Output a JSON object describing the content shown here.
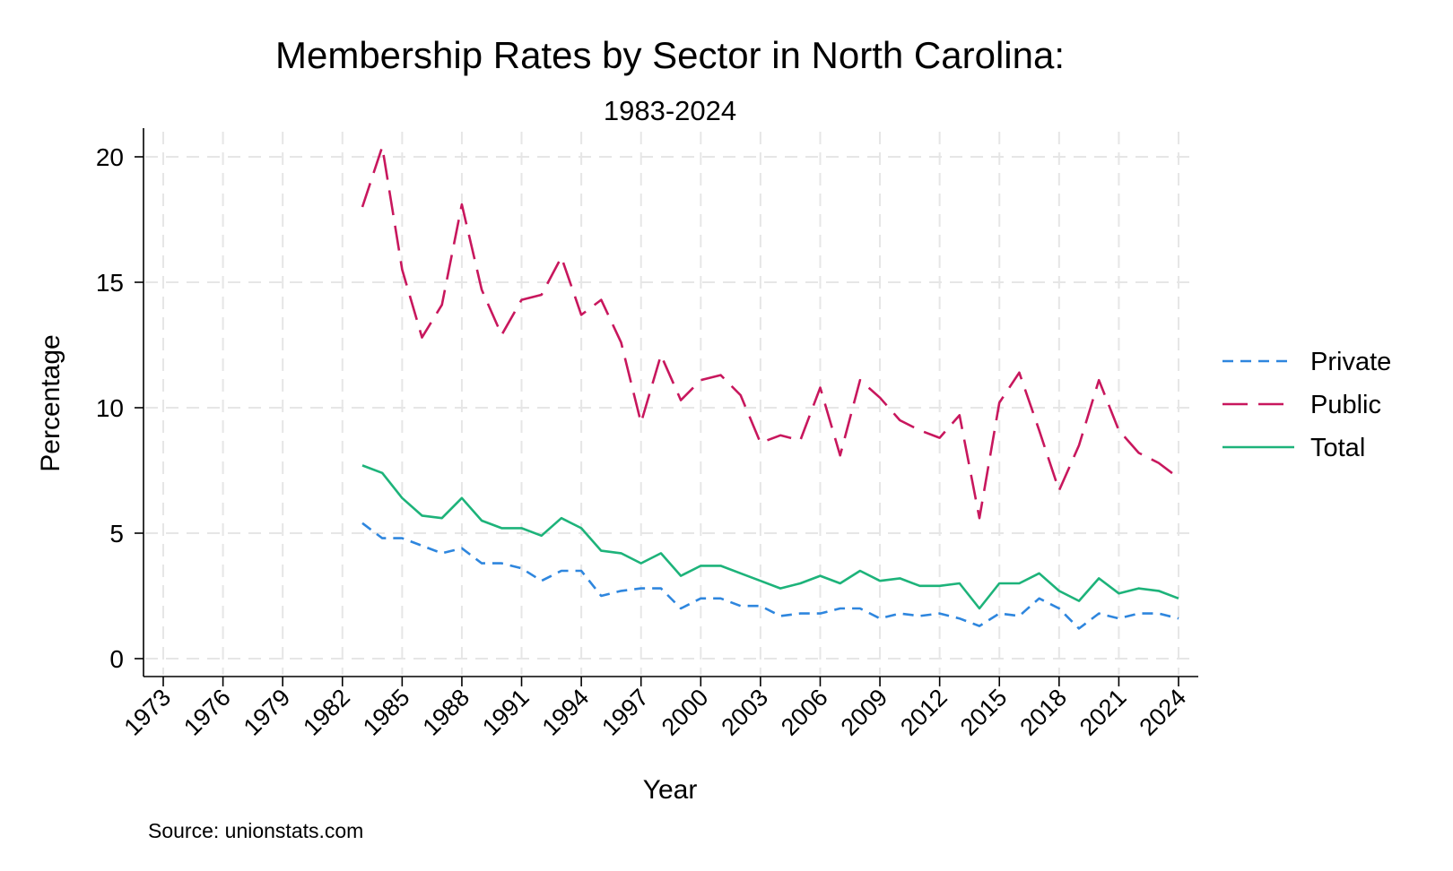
{
  "chart_data": {
    "type": "line",
    "title": "Membership Rates by Sector in North Carolina:",
    "subtitle": "1983-2024",
    "xlabel": "Year",
    "ylabel": "Percentage",
    "source": "Source: unionstats.com",
    "xlim": [
      1973,
      2024
    ],
    "ylim": [
      0,
      20
    ],
    "x_ticks": [
      1973,
      1976,
      1979,
      1982,
      1985,
      1988,
      1991,
      1994,
      1997,
      2000,
      2003,
      2006,
      2009,
      2012,
      2015,
      2018,
      2021,
      2024
    ],
    "y_ticks": [
      0,
      5,
      10,
      15,
      20
    ],
    "grid": true,
    "legend_position": "right",
    "x": [
      1983,
      1984,
      1985,
      1986,
      1987,
      1988,
      1989,
      1990,
      1991,
      1992,
      1993,
      1994,
      1995,
      1996,
      1997,
      1998,
      1999,
      2000,
      2001,
      2002,
      2003,
      2004,
      2005,
      2006,
      2007,
      2008,
      2009,
      2010,
      2011,
      2012,
      2013,
      2014,
      2015,
      2016,
      2017,
      2018,
      2019,
      2020,
      2021,
      2022,
      2023,
      2024
    ],
    "series": [
      {
        "name": "Private",
        "color": "#2e86de",
        "dash": "short",
        "values": [
          5.4,
          4.8,
          4.8,
          4.5,
          4.2,
          4.4,
          3.8,
          3.8,
          3.6,
          3.1,
          3.5,
          3.5,
          2.5,
          2.7,
          2.8,
          2.8,
          2.0,
          2.4,
          2.4,
          2.1,
          2.1,
          1.7,
          1.8,
          1.8,
          2.0,
          2.0,
          1.6,
          1.8,
          1.7,
          1.8,
          1.6,
          1.3,
          1.8,
          1.7,
          2.4,
          2.0,
          1.2,
          1.8,
          1.6,
          1.8,
          1.8,
          1.6
        ]
      },
      {
        "name": "Public",
        "color": "#c8175d",
        "dash": "long",
        "values": [
          18.0,
          20.4,
          15.5,
          12.8,
          14.1,
          18.1,
          14.7,
          12.9,
          14.3,
          14.5,
          16.0,
          13.7,
          14.3,
          12.6,
          9.4,
          12.1,
          10.3,
          11.1,
          11.3,
          10.5,
          8.6,
          8.9,
          8.7,
          10.8,
          8.1,
          11.1,
          10.4,
          9.5,
          9.1,
          8.8,
          9.7,
          5.6,
          10.2,
          11.4,
          9.1,
          6.7,
          8.5,
          11.1,
          9.1,
          8.2,
          7.8,
          7.2
        ]
      },
      {
        "name": "Total",
        "color": "#1db37a",
        "dash": "solid",
        "values": [
          7.7,
          7.4,
          6.4,
          5.7,
          5.6,
          6.4,
          5.5,
          5.2,
          5.2,
          4.9,
          5.6,
          5.2,
          4.3,
          4.2,
          3.8,
          4.2,
          3.3,
          3.7,
          3.7,
          3.4,
          3.1,
          2.8,
          3.0,
          3.3,
          3.0,
          3.5,
          3.1,
          3.2,
          2.9,
          2.9,
          3.0,
          2.0,
          3.0,
          3.0,
          3.4,
          2.7,
          2.3,
          3.2,
          2.6,
          2.8,
          2.7,
          2.4
        ]
      }
    ]
  }
}
